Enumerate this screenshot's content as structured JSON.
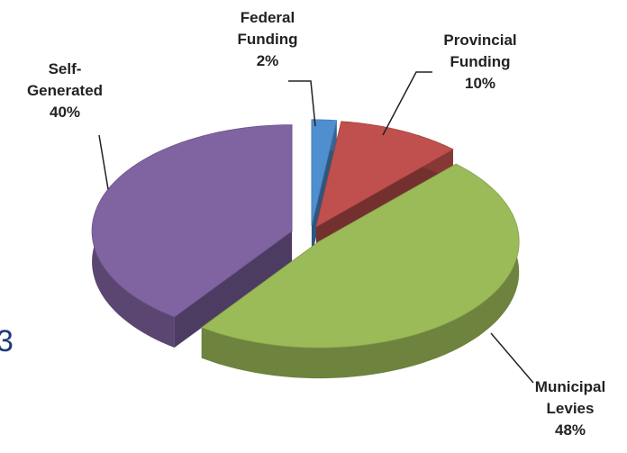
{
  "chart_data": {
    "type": "pie",
    "categories": [
      "Federal Funding",
      "Provincial Funding",
      "Municipal Levies",
      "Self-Generated"
    ],
    "values": [
      2,
      10,
      48,
      40
    ],
    "value_labels": [
      "2%",
      "10%",
      "48%",
      "40%"
    ],
    "colors": [
      "#4f8fd0",
      "#c0504d",
      "#9bbb59",
      "#8064a2"
    ],
    "annotations": [
      "3"
    ]
  }
}
